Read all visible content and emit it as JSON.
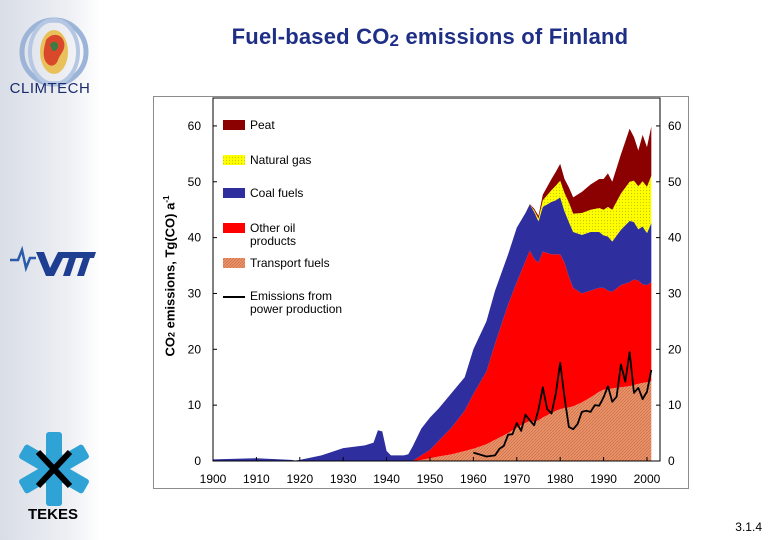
{
  "header": {
    "title_prefix": "Fuel-based CO",
    "title_subscript": "2",
    "title_suffix": " emissions of Finland"
  },
  "logos": {
    "climtech": "CLIMTECH",
    "tekes": "TEKES",
    "vtt": "VTT"
  },
  "footer": {
    "page_number": "3.1.4"
  },
  "colors": {
    "peat": "#8b0000",
    "natural_gas": "#ffff00",
    "coal": "#2e2e9e",
    "other_oil": "#ff0000",
    "transport": "#e8936a",
    "power_line": "#000000",
    "title": "#1f2f86"
  },
  "chart_data": {
    "type": "area",
    "stacked": true,
    "title": "Fuel-based CO2 emissions of Finland",
    "ylabel_prefix": "CO",
    "ylabel_subscript": "2",
    "ylabel_middle": " emissions, Tg(CO) a",
    "ylabel_superscript": "-1",
    "xlim": [
      1900,
      2003
    ],
    "ylim": [
      0,
      65
    ],
    "xticks": [
      1900,
      1910,
      1920,
      1930,
      1940,
      1950,
      1960,
      1970,
      1980,
      1990,
      2000
    ],
    "yticks": [
      0,
      10,
      20,
      30,
      40,
      50,
      60
    ],
    "x": [
      1900,
      1910,
      1918,
      1919,
      1920,
      1925,
      1930,
      1935,
      1937,
      1938,
      1939,
      1940,
      1941,
      1944,
      1945,
      1946,
      1948,
      1950,
      1952,
      1955,
      1958,
      1960,
      1963,
      1965,
      1968,
      1970,
      1972,
      1973,
      1974,
      1975,
      1976,
      1978,
      1979,
      1980,
      1981,
      1982,
      1983,
      1985,
      1987,
      1989,
      1990,
      1991,
      1992,
      1994,
      1996,
      1997,
      1998,
      1999,
      2000,
      2001
    ],
    "series": [
      {
        "name": "Transport fuels",
        "values": [
          0,
          0,
          0,
          0,
          0,
          0,
          0,
          0,
          0,
          0,
          0,
          0,
          0,
          0,
          0,
          0,
          0.2,
          0.5,
          0.8,
          1.2,
          1.8,
          2.2,
          3.0,
          3.8,
          5.0,
          6.0,
          6.8,
          7.2,
          7.0,
          7.3,
          7.8,
          8.6,
          9.0,
          9.3,
          9.5,
          9.6,
          9.8,
          10.5,
          11.4,
          12.4,
          12.8,
          12.8,
          13.0,
          13.2,
          13.4,
          13.6,
          13.8,
          14.0,
          14.1,
          14.3
        ]
      },
      {
        "name": "Other oil products",
        "values": [
          0,
          0,
          0,
          0,
          0,
          0,
          0,
          0,
          0,
          0,
          0,
          0,
          0,
          0,
          0,
          0,
          0.8,
          1.5,
          2.8,
          4.8,
          7.2,
          9.8,
          13.0,
          17.2,
          23.0,
          26.0,
          29.0,
          30.5,
          29.2,
          28.2,
          29.7,
          28.4,
          28.0,
          27.7,
          26.0,
          23.4,
          21.2,
          19.5,
          19.1,
          18.6,
          18.2,
          17.7,
          17.3,
          18.3,
          18.6,
          18.9,
          18.5,
          17.6,
          17.4,
          17.7
        ]
      },
      {
        "name": "Coal fuels",
        "values": [
          0.3,
          0.5,
          0.2,
          0.1,
          0.2,
          1.0,
          2.3,
          2.8,
          3.3,
          5.5,
          5.3,
          1.8,
          1.0,
          1.0,
          1.2,
          2.6,
          4.8,
          5.8,
          5.8,
          6.2,
          6.0,
          8.0,
          9.0,
          9.5,
          9.0,
          9.8,
          8.6,
          8.2,
          8.4,
          7.4,
          8.0,
          9.4,
          9.7,
          10.2,
          9.2,
          9.8,
          10.0,
          10.5,
          10.5,
          10.0,
          9.4,
          9.7,
          9.0,
          9.9,
          11.0,
          10.3,
          9.2,
          10.4,
          9.3,
          10.6
        ]
      },
      {
        "name": "Natural gas",
        "values": [
          0,
          0,
          0,
          0,
          0,
          0,
          0,
          0,
          0,
          0,
          0,
          0,
          0,
          0,
          0,
          0,
          0,
          0,
          0,
          0,
          0,
          0,
          0,
          0,
          0,
          0,
          0,
          0,
          0.3,
          0.5,
          1.2,
          2.1,
          2.6,
          3.0,
          3.3,
          3.5,
          3.3,
          3.9,
          4.0,
          4.3,
          4.6,
          5.3,
          5.7,
          6.5,
          7.0,
          7.4,
          7.7,
          8.1,
          8.3,
          8.5
        ]
      },
      {
        "name": "Peat",
        "values": [
          0,
          0,
          0,
          0,
          0,
          0,
          0,
          0,
          0,
          0,
          0,
          0,
          0,
          0,
          0,
          0,
          0,
          0,
          0,
          0,
          0,
          0,
          0,
          0,
          0,
          0,
          0,
          0.1,
          0.3,
          0.5,
          1.0,
          2.0,
          2.5,
          3.0,
          2.5,
          2.7,
          2.9,
          3.8,
          4.5,
          5.2,
          5.5,
          6.0,
          5.0,
          7.0,
          9.5,
          7.8,
          6.4,
          8.3,
          7.1,
          8.8
        ]
      }
    ],
    "line_series": {
      "name": "Emissions from power production",
      "x": [
        1960,
        1963,
        1965,
        1966,
        1967,
        1968,
        1969,
        1970,
        1971,
        1972,
        1973,
        1974,
        1975,
        1976,
        1977,
        1978,
        1979,
        1980,
        1981,
        1982,
        1983,
        1984,
        1985,
        1986,
        1987,
        1988,
        1989,
        1990,
        1991,
        1992,
        1993,
        1994,
        1995,
        1996,
        1997,
        1998,
        1999,
        2000,
        2001
      ],
      "values": [
        1.5,
        0.8,
        1.0,
        2.2,
        2.7,
        4.7,
        4.8,
        6.8,
        5.4,
        8.3,
        7.3,
        6.4,
        9.2,
        13.2,
        9.3,
        8.5,
        12.1,
        17.6,
        11.4,
        6.1,
        5.7,
        6.6,
        8.8,
        9.0,
        8.8,
        10.0,
        9.9,
        11.4,
        13.4,
        10.6,
        11.5,
        17.3,
        14.2,
        19.5,
        12.2,
        13.1,
        11.1,
        12.4,
        16.3
      ]
    },
    "legend": [
      {
        "label": "Peat",
        "kind": "swatch",
        "color": "#8b0000"
      },
      {
        "label": "Natural gas",
        "kind": "swatch",
        "color": "#ffff00"
      },
      {
        "label": "Coal fuels",
        "kind": "swatch",
        "color": "#2e2e9e"
      },
      {
        "label": "Other oil products",
        "kind": "swatch",
        "color": "#ff0000"
      },
      {
        "label": "Transport fuels",
        "kind": "swatch",
        "color": "#e8936a"
      },
      {
        "label": "Emissions from power production",
        "kind": "line",
        "color": "#000000"
      }
    ],
    "legend_position": "top-left",
    "grid": false
  }
}
